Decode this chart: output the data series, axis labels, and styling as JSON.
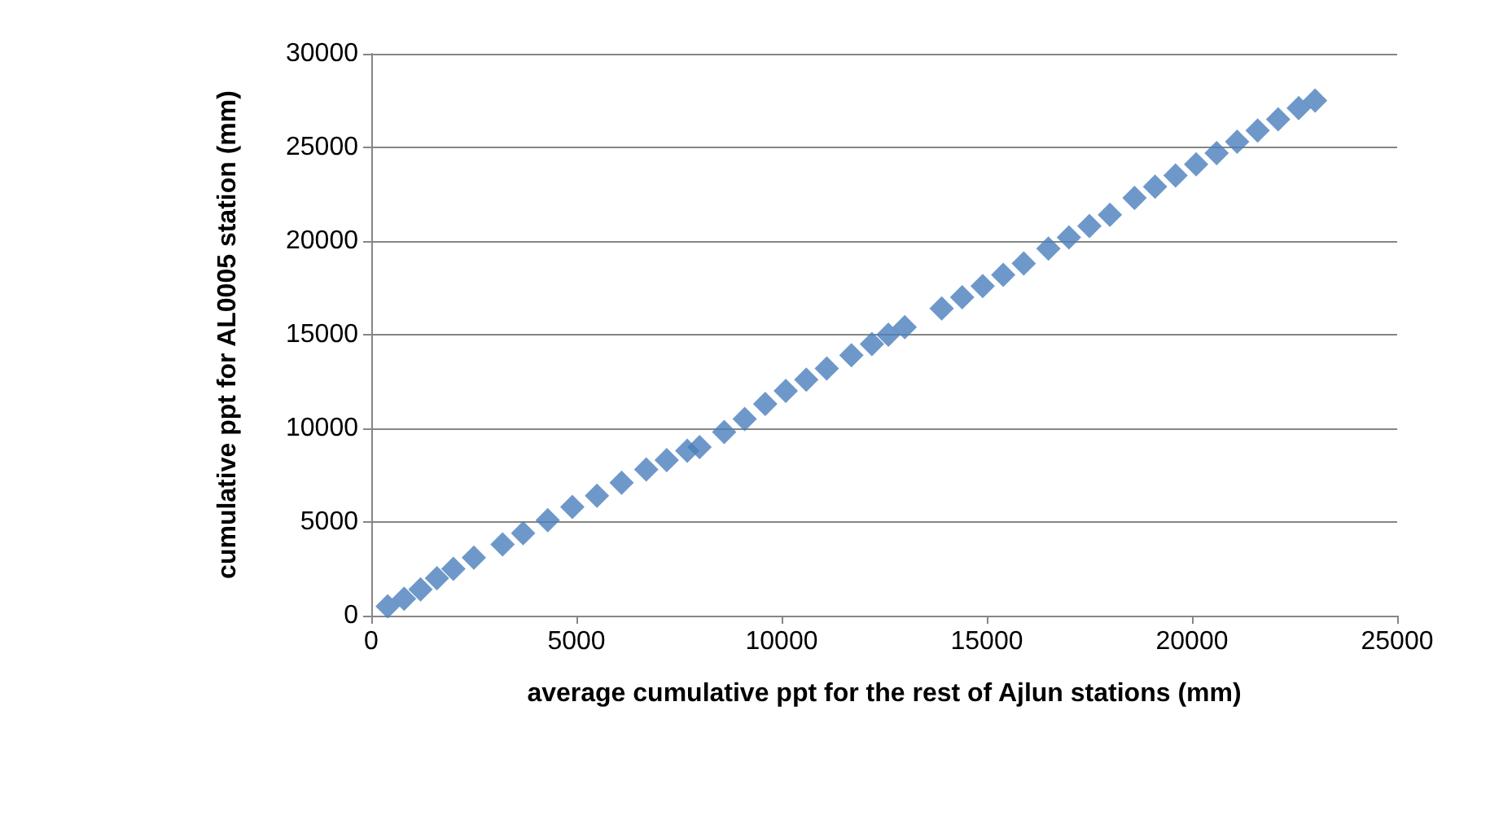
{
  "chart_data": {
    "type": "scatter",
    "xlabel": "average cumulative ppt for the rest of Ajlun stations (mm)",
    "ylabel": "cumulative ppt for AL0005 station (mm)",
    "xlim": [
      0,
      25000
    ],
    "xticks": [
      0,
      5000,
      10000,
      15000,
      20000,
      25000
    ],
    "ylim": [
      0,
      30000
    ],
    "yticks": [
      0,
      5000,
      10000,
      15000,
      20000,
      25000,
      30000
    ],
    "grid": "y",
    "marker": "diamond",
    "series": [
      {
        "color": "#4a7ebb",
        "x": [
          400,
          800,
          1200,
          1600,
          2000,
          2500,
          3200,
          3700,
          4300,
          4900,
          5500,
          6100,
          6700,
          7200,
          7700,
          8000,
          8600,
          9100,
          9600,
          10100,
          10600,
          11100,
          11700,
          12200,
          12600,
          13000,
          13900,
          14400,
          14900,
          15400,
          15900,
          16500,
          17000,
          17500,
          18000,
          18600,
          19100,
          19600,
          20100,
          20600,
          21100,
          21600,
          22100,
          22600,
          23000
        ],
        "values": [
          500,
          900,
          1400,
          2000,
          2500,
          3100,
          3800,
          4400,
          5100,
          5800,
          6400,
          7100,
          7800,
          8300,
          8800,
          9000,
          9800,
          10500,
          11300,
          12000,
          12600,
          13200,
          13900,
          14500,
          15000,
          15400,
          16400,
          17000,
          17600,
          18200,
          18800,
          19600,
          20200,
          20800,
          21400,
          22300,
          22900,
          23500,
          24100,
          24700,
          25300,
          25900,
          26500,
          27100,
          27500
        ]
      }
    ]
  }
}
